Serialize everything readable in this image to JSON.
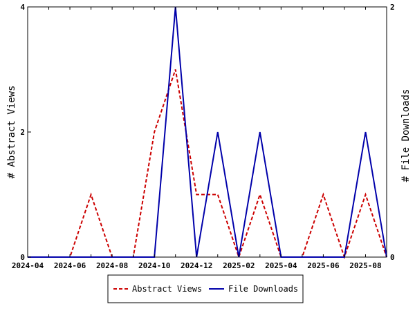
{
  "chart_data": {
    "type": "line",
    "months": [
      "2024-04",
      "2024-05",
      "2024-06",
      "2024-07",
      "2024-08",
      "2024-09",
      "2024-10",
      "2024-11",
      "2024-12",
      "2025-01",
      "2025-02",
      "2025-03",
      "2025-04",
      "2025-05",
      "2025-06",
      "2025-07",
      "2025-08",
      "2025-09"
    ],
    "x_tick_labels": [
      "2024-04",
      "2024-06",
      "2024-08",
      "2024-10",
      "2024-12",
      "2025-02",
      "2025-04",
      "2025-06",
      "2025-08"
    ],
    "ylabel_left": "# Abstract Views",
    "ylabel_right": "# File Downloads",
    "ylim_left": [
      0,
      4
    ],
    "ylim_right": [
      0,
      2
    ],
    "yticks_left": [
      0,
      2,
      4
    ],
    "yticks_right": [
      0,
      2
    ],
    "grid": false,
    "legend_position": "bottom-center",
    "series": [
      {
        "name": "Abstract Views",
        "axis": "left",
        "color": "#cc0000",
        "dash": "dashed",
        "values": [
          0,
          0,
          0,
          1,
          0,
          0,
          2,
          3,
          1,
          1,
          0,
          1,
          0,
          0,
          1,
          0,
          1,
          0
        ]
      },
      {
        "name": "File Downloads",
        "axis": "right",
        "color": "#0000aa",
        "dash": "solid",
        "values": [
          0,
          0,
          0,
          0,
          0,
          0,
          0,
          2,
          0,
          1,
          0,
          1,
          0,
          0,
          0,
          0,
          1,
          0
        ]
      }
    ]
  }
}
